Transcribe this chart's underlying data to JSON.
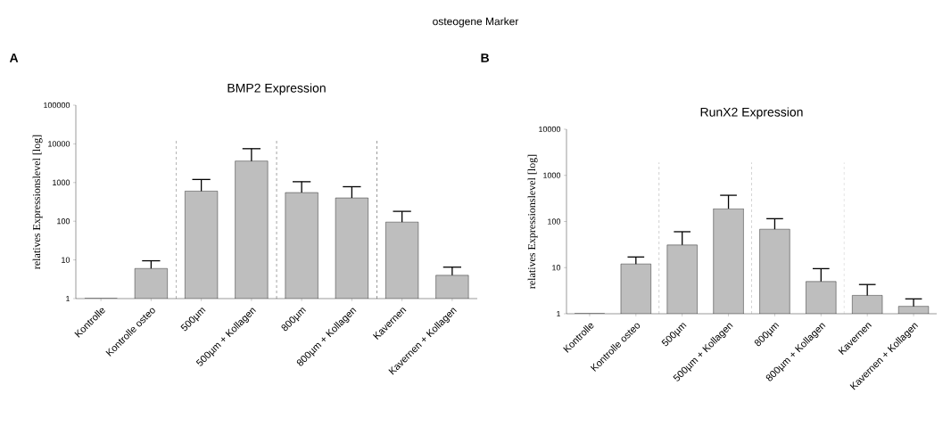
{
  "chart_data": [
    {
      "type": "bar",
      "title": "BMP2 Expression",
      "ylabel": "relatives Expressionslevel [log]",
      "annotations": [
        "osteogene Marker",
        "A"
      ],
      "categories": [
        "Kontrolle",
        "Kontrolle osteo",
        "500µm",
        "500µm + Kollagen",
        "800µm",
        "800µm + Kollagen",
        "Kavernen",
        "Kavernen + Kollagen"
      ],
      "values": [
        1,
        6,
        600,
        3600,
        550,
        400,
        95,
        4
      ],
      "errors": [
        null,
        [
          6,
          9.5
        ],
        [
          600,
          1200
        ],
        [
          3600,
          7500
        ],
        [
          550,
          1050
        ],
        [
          400,
          780
        ],
        [
          95,
          180
        ],
        [
          4,
          6.5
        ]
      ],
      "color": "#bebebe",
      "log": true,
      "ylim": [
        1,
        100000
      ],
      "yticks": [
        1,
        10,
        100,
        1000,
        10000,
        100000
      ]
    },
    {
      "type": "bar",
      "title": "RunX2 Expression",
      "ylabel": "relatives Expressionslevel [log]",
      "annotations": [
        "B"
      ],
      "categories": [
        "Kontrolle",
        "Kontrolle osteo",
        "500µm",
        "500µm + Kollagen",
        "800µm",
        "800µm + Kollagen",
        "Kavernen",
        "Kavernen + Kollagen"
      ],
      "values": [
        1,
        12,
        31,
        190,
        68,
        5,
        2.5,
        1.45
      ],
      "errors": [
        null,
        [
          12,
          17
        ],
        [
          31,
          60
        ],
        [
          190,
          370
        ],
        [
          68,
          115
        ],
        [
          5,
          9.5
        ],
        [
          2.5,
          4.3
        ],
        [
          1.45,
          2.1
        ]
      ],
      "color": "#bebebe",
      "log": true,
      "ylim": [
        1,
        10000
      ],
      "yticks": [
        1,
        10,
        100,
        1000,
        10000
      ]
    }
  ]
}
